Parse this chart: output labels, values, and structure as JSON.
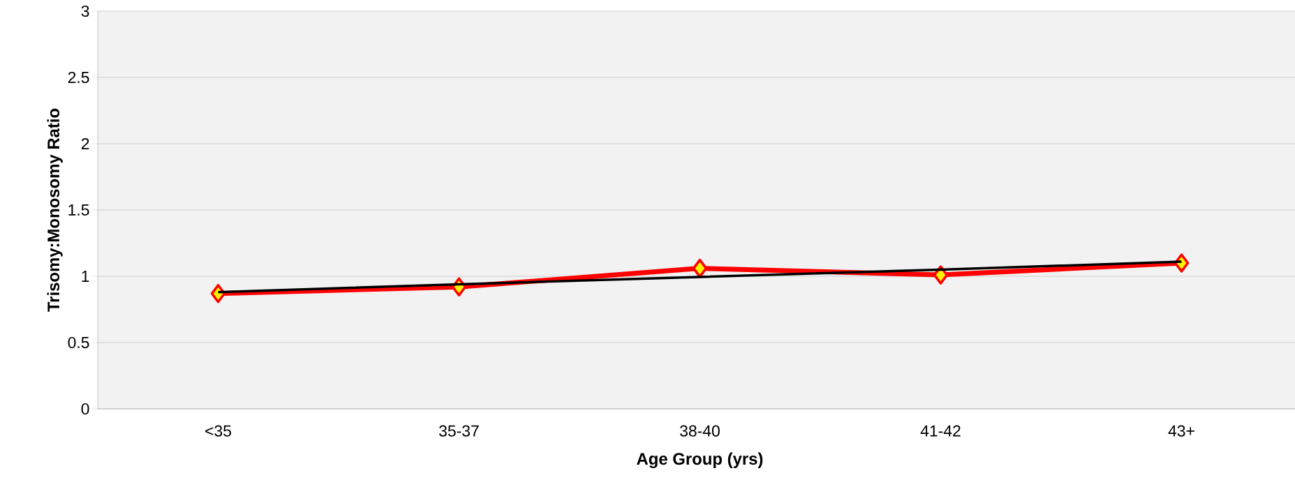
{
  "chart_data": {
    "type": "line",
    "xlabel": "Age Group (yrs)",
    "ylabel": "Trisomy:Monosomy Ratio",
    "categories": [
      "<35",
      "35-37",
      "38-40",
      "41-42",
      "43+"
    ],
    "series": [
      {
        "color": "#ff0000",
        "marker": "diamond",
        "values": [
          0.87,
          0.92,
          1.06,
          1.01,
          1.1
        ]
      },
      {
        "color": "#000000",
        "marker": "none",
        "values": [
          0.88,
          0.94,
          0.995,
          1.05,
          1.11
        ]
      }
    ],
    "ylim": [
      0,
      3
    ],
    "yticks": [
      0,
      0.5,
      1,
      1.5,
      2,
      2.5,
      3
    ],
    "grid": "y"
  }
}
